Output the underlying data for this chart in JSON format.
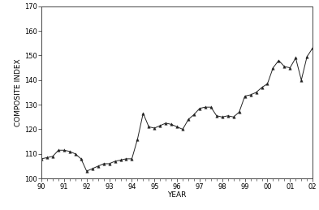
{
  "x": [
    1990.0,
    1990.25,
    1990.5,
    1990.75,
    1991.0,
    1991.25,
    1991.5,
    1991.75,
    1992.0,
    1992.25,
    1992.5,
    1992.75,
    1993.0,
    1993.25,
    1993.5,
    1993.75,
    1994.0,
    1994.25,
    1994.5,
    1994.75,
    1995.0,
    1995.25,
    1995.5,
    1995.75,
    1996.0,
    1996.25,
    1996.5,
    1996.75,
    1997.0,
    1997.25,
    1997.5,
    1997.75,
    1998.0,
    1998.25,
    1998.5,
    1998.75,
    1999.0,
    1999.25,
    1999.5,
    1999.75,
    2000.0,
    2000.25,
    2000.5,
    2000.75,
    2001.0,
    2001.25,
    2001.5,
    2001.75,
    2002.0
  ],
  "y": [
    108.0,
    108.5,
    109.0,
    111.5,
    111.5,
    111.0,
    110.0,
    108.0,
    103.0,
    104.0,
    105.0,
    106.0,
    106.0,
    107.0,
    107.5,
    108.0,
    108.0,
    116.0,
    126.5,
    121.0,
    120.5,
    121.5,
    122.5,
    122.0,
    121.0,
    120.0,
    124.0,
    126.0,
    128.5,
    129.0,
    129.0,
    125.5,
    125.0,
    125.5,
    125.0,
    127.0,
    133.5,
    134.0,
    135.0,
    137.0,
    138.5,
    145.0,
    148.0,
    145.5,
    145.0,
    149.0,
    140.0,
    149.5,
    153.0
  ],
  "xlim": [
    1990,
    2002
  ],
  "ylim": [
    100,
    170
  ],
  "yticks": [
    100,
    110,
    120,
    130,
    140,
    150,
    160,
    170
  ],
  "xtick_positions": [
    1990,
    1991,
    1992,
    1993,
    1994,
    1995,
    1996,
    1997,
    1998,
    1999,
    2000,
    2001,
    2002
  ],
  "xtick_labels": [
    "90",
    "91",
    "92",
    "93",
    "94",
    "95",
    "96",
    "97",
    "98",
    "99",
    "00",
    "01",
    "02"
  ],
  "xlabel": "YEAR",
  "ylabel": "COMPOSITE INDEX",
  "line_color": "#222222",
  "marker": "^",
  "marker_size": 2.5,
  "linewidth": 0.7,
  "bg_color": "#ffffff",
  "axis_label_fontsize": 6.5,
  "tick_fontsize": 6
}
